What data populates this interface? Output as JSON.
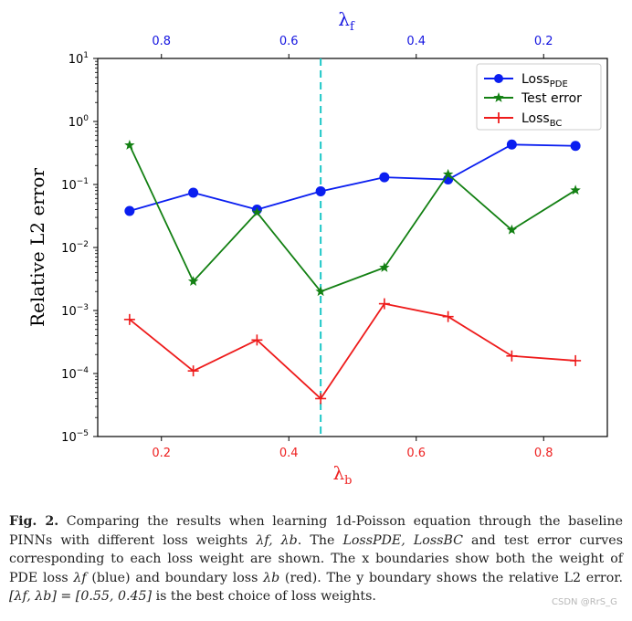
{
  "chart_data": {
    "type": "line",
    "y_scale": "log",
    "ylim": [
      1e-05,
      10
    ],
    "ylabel": "Relative L2 error",
    "y_ticks": [
      {
        "value": 1e-05,
        "base": "10",
        "exp": "−5"
      },
      {
        "value": 0.0001,
        "base": "10",
        "exp": "−4"
      },
      {
        "value": 0.001,
        "base": "10",
        "exp": "−3"
      },
      {
        "value": 0.01,
        "base": "10",
        "exp": "−2"
      },
      {
        "value": 0.1,
        "base": "10",
        "exp": "−1"
      },
      {
        "value": 1,
        "base": "10",
        "exp": "0"
      },
      {
        "value": 10,
        "base": "10",
        "exp": "1"
      }
    ],
    "x_bottom": {
      "label_main": "λ",
      "label_sub": "b",
      "color": "#ee2222",
      "range": [
        0.1,
        0.9
      ],
      "ticks": [
        {
          "value": 0.2,
          "label": "0.2"
        },
        {
          "value": 0.4,
          "label": "0.4"
        },
        {
          "value": 0.6,
          "label": "0.6"
        },
        {
          "value": 0.8,
          "label": "0.8"
        }
      ]
    },
    "x_top": {
      "label_main": "λ",
      "label_sub": "f",
      "color": "#1515e0",
      "ticks": [
        {
          "lambda_b": 0.2,
          "label": "0.8"
        },
        {
          "lambda_b": 0.4,
          "label": "0.6"
        },
        {
          "lambda_b": 0.6,
          "label": "0.4"
        },
        {
          "lambda_b": 0.8,
          "label": "0.2"
        }
      ]
    },
    "x": [
      0.15,
      0.25,
      0.35,
      0.45,
      0.55,
      0.65,
      0.75,
      0.85
    ],
    "series": [
      {
        "name": "Loss",
        "sub": "PDE",
        "color": "#0a1ef0",
        "marker": "circle",
        "values": [
          0.038,
          0.074,
          0.04,
          0.078,
          0.13,
          0.12,
          0.43,
          0.41
        ]
      },
      {
        "name": "Test error",
        "sub": "",
        "color": "#138013",
        "marker": "star",
        "values": [
          0.42,
          0.0029,
          0.036,
          0.002,
          0.0048,
          0.145,
          0.019,
          0.081
        ]
      },
      {
        "name": "Loss",
        "sub": "BC",
        "color": "#ee1b1b",
        "marker": "plus",
        "values": [
          0.00072,
          0.00011,
          0.00034,
          4e-05,
          0.00128,
          0.0008,
          0.00019,
          0.00016
        ]
      }
    ],
    "vline": {
      "x": 0.45,
      "color": "#1ec8c8"
    },
    "legend": "top-right"
  },
  "caption": {
    "label": "Fig. 2.",
    "line1": "Comparing the results when learning 1d-Poisson equation through the",
    "line2_a": "baseline PINNs with different loss weights ",
    "line2_b": "λf, λb",
    "line2_c": ". The ",
    "line2_d": "LossPDE, LossBC",
    "line2_e": " and test error",
    "line3": "curves corresponding to each loss weight are shown. The x boundaries show both",
    "line4_a": "the weight of PDE loss ",
    "line4_b": "λf",
    "line4_c": " (blue) and boundary loss ",
    "line4_d": "λb",
    "line4_e": " (red). The y boundary shows",
    "line5_a": "the relative L2 error. ",
    "line5_b": "[λf, λb] = [0.55, 0.45]",
    "line5_c": " is the best choice of loss weights."
  },
  "watermark": "CSDN @RrS_G"
}
